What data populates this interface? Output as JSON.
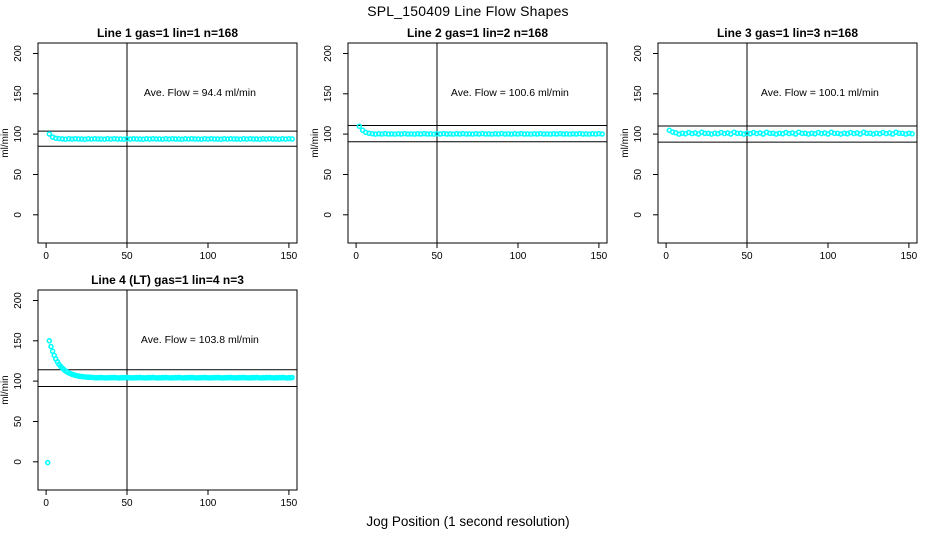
{
  "page_title": "SPL_150409  Line Flow Shapes",
  "xlabel": "Jog Position (1 second resolution)",
  "colors": {
    "points": "#00ffff",
    "axis": "#000000",
    "background": "#ffffff"
  },
  "chart_data": [
    {
      "type": "scatter",
      "title": "Line 1 gas=1 lin=1 n=168",
      "annotation": {
        "text": "Ave. Flow =  94.4  ml/min",
        "x": 95,
        "y": 147
      },
      "ave_flow_ml_min": 94.4,
      "ylabel": "ml/min",
      "xlim": [
        -5,
        155
      ],
      "ylim": [
        -35,
        213
      ],
      "xticks": [
        0,
        50,
        100,
        150
      ],
      "yticks": [
        0,
        50,
        100,
        150,
        200
      ],
      "grid": false,
      "legend": "none",
      "vline_x": 50,
      "hlines": [
        103.8,
        85.0
      ],
      "x_start": 2,
      "x_step": 2,
      "y": [
        100.2,
        96.3,
        95,
        94.4,
        94.1,
        93.7,
        94.2,
        93.8,
        94.3,
        93.9,
        94,
        93.7,
        94.2,
        93.8,
        94.3,
        93.9,
        94,
        93.7,
        94.2,
        93.8,
        94.3,
        93.9,
        94,
        93.7,
        94.2,
        93.8,
        94.3,
        93.9,
        94,
        93.7,
        94.2,
        93.8,
        94.3,
        93.9,
        94,
        93.7,
        94.2,
        93.8,
        94.3,
        93.9,
        94,
        93.7,
        94.2,
        93.8,
        94.3,
        93.9,
        94,
        93.7,
        94.2,
        93.8,
        94.3,
        93.9,
        94,
        93.7,
        94.2,
        93.8,
        94.3,
        93.9,
        94,
        93.7,
        94.2,
        93.8,
        94.3,
        93.9,
        94,
        93.7,
        94.2,
        93.8,
        94.3,
        93.9,
        94,
        93.7,
        94.2,
        93.8,
        94.3,
        93.9
      ]
    },
    {
      "type": "scatter",
      "title": "Line 2 gas=1 lin=2 n=168",
      "annotation": {
        "text": "Ave. Flow =  100.6  ml/min",
        "x": 95,
        "y": 147
      },
      "ave_flow_ml_min": 100.6,
      "ylabel": "ml/min",
      "xlim": [
        -5,
        155
      ],
      "ylim": [
        -35,
        213
      ],
      "xticks": [
        0,
        50,
        100,
        150
      ],
      "yticks": [
        0,
        50,
        100,
        150,
        200
      ],
      "grid": false,
      "legend": "none",
      "vline_x": 50,
      "hlines": [
        110.7,
        90.5
      ],
      "x_start": 2,
      "x_step": 2,
      "y": [
        109.8,
        104.9,
        102.2,
        101,
        100.5,
        100,
        100.4,
        100.1,
        100.6,
        100.2,
        100.3,
        100,
        100.4,
        100.1,
        100.6,
        100.2,
        100.3,
        100,
        100.4,
        100.1,
        100.6,
        100.2,
        100.3,
        100,
        100.4,
        100.1,
        100.6,
        100.2,
        100.3,
        100,
        100.4,
        100.1,
        100.6,
        100.2,
        100.3,
        100,
        100.4,
        100.1,
        100.6,
        100.2,
        100.3,
        100,
        100.4,
        100.1,
        100.6,
        100.2,
        100.3,
        100,
        100.4,
        100.1,
        100.6,
        100.2,
        100.3,
        100,
        100.4,
        100.1,
        100.6,
        100.2,
        100.3,
        100,
        100.4,
        100.1,
        100.6,
        100.2,
        100.3,
        100,
        100.4,
        100.1,
        100.6,
        100.2,
        100.3,
        100,
        100.4,
        100.1,
        100.6,
        100.2
      ]
    },
    {
      "type": "scatter",
      "title": "Line 3 gas=1 lin=3 n=168",
      "annotation": {
        "text": "Ave. Flow =  100.1  ml/min",
        "x": 95,
        "y": 147
      },
      "ave_flow_ml_min": 100.1,
      "ylabel": "ml/min",
      "xlim": [
        -5,
        155
      ],
      "ylim": [
        -35,
        213
      ],
      "xticks": [
        0,
        50,
        100,
        150
      ],
      "yticks": [
        0,
        50,
        100,
        150,
        200
      ],
      "grid": false,
      "legend": "none",
      "vline_x": 50,
      "hlines": [
        110.1,
        90.1
      ],
      "x_start": 2,
      "x_step": 2,
      "y": [
        104.8,
        102.6,
        101.6,
        100,
        101.2,
        100.4,
        102,
        100.7,
        101.5,
        100.2,
        102.4,
        100.9,
        101,
        100,
        101.2,
        100.4,
        102,
        100.7,
        101.5,
        100.2,
        102.4,
        100.9,
        101,
        100,
        101.2,
        100.4,
        102,
        100.7,
        101.5,
        100.2,
        102.4,
        100.9,
        101,
        100,
        101.2,
        100.4,
        102,
        100.7,
        101.5,
        100.2,
        102.4,
        100.9,
        101,
        100,
        101.2,
        100.4,
        102,
        100.7,
        101.5,
        100.2,
        102.4,
        100.9,
        101,
        100,
        101.2,
        100.4,
        102,
        100.7,
        101.5,
        100.2,
        102.4,
        100.9,
        101,
        100,
        101.2,
        100.4,
        102,
        100.7,
        101.5,
        100.2,
        102.4,
        100.9,
        101,
        100,
        101.2,
        100.4
      ]
    },
    {
      "type": "scatter",
      "title": "Line 4 (LT) gas=1 lin=4 n=3",
      "annotation": {
        "text": "Ave. Flow =  103.8  ml/min",
        "x": 95,
        "y": 147
      },
      "ave_flow_ml_min": 103.8,
      "ylabel": "ml/min",
      "xlim": [
        -5,
        155
      ],
      "ylim": [
        -35,
        213
      ],
      "xticks": [
        0,
        50,
        100,
        150
      ],
      "yticks": [
        0,
        50,
        100,
        150,
        200
      ],
      "grid": false,
      "legend": "none",
      "vline_x": 50,
      "hlines": [
        114.2,
        93.4
      ],
      "x_start": 2,
      "x_step": 1,
      "extra_points": [
        [
          1,
          -1
        ]
      ],
      "y": [
        150,
        142.9,
        137,
        131.9,
        127.6,
        124,
        120.9,
        118.3,
        116.1,
        114.3,
        112.7,
        111.4,
        110.2,
        109.3,
        108.5,
        107.8,
        107.2,
        106.7,
        106.3,
        105.9,
        105.6,
        105.4,
        105.2,
        105,
        104.8,
        104.7,
        104.6,
        104.5,
        104.4,
        104,
        104.5,
        104.1,
        104.6,
        104.2,
        104.3,
        103.9,
        104.4,
        104,
        104.5,
        104.1,
        104.6,
        104.2,
        104.3,
        103.9,
        104.4,
        104,
        104.5,
        104.1,
        104.6,
        104.2,
        104.3,
        103.9,
        104.4,
        104,
        104.5,
        104.1,
        104.6,
        104.2,
        104.3,
        103.9,
        104.4,
        104,
        104.5,
        104.1,
        104.6,
        104.2,
        104.3,
        103.9,
        104.4,
        104,
        104.5,
        104.1,
        104.6,
        104.2,
        104.3,
        103.9,
        104.4,
        104,
        104.5,
        104.1,
        104.6,
        104.2,
        104.3,
        103.9,
        104.4,
        104,
        104.5,
        104.1,
        104.6,
        104.2,
        104.3,
        103.9,
        104.4,
        104,
        104.5,
        104.1,
        104.6,
        104.2,
        104.3,
        103.9,
        104.4,
        104,
        104.5,
        104.1,
        104.6,
        104.2,
        104.3,
        103.9,
        104.4,
        104,
        104.5,
        104.1,
        104.6,
        104.2,
        104.3,
        103.9,
        104.4,
        104,
        104.5,
        104.1,
        104.6,
        104.2,
        104.3,
        103.9,
        104.4,
        104,
        104.5,
        104.1,
        104.6,
        104.2,
        104.3,
        103.9,
        104.4,
        104,
        104.5,
        104.1,
        104.6,
        104.2,
        104.3,
        103.9,
        104.4,
        104,
        104.5,
        104.1,
        104.6,
        104.2,
        104.3,
        103.9,
        104.4,
        104,
        104.5
      ]
    }
  ]
}
